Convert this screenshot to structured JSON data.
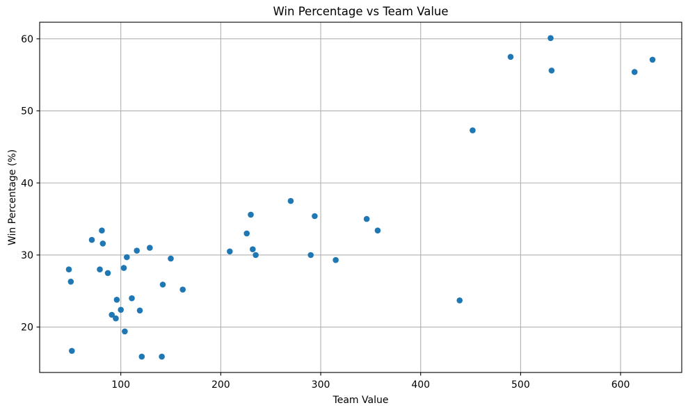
{
  "figure": {
    "background": "#ffffff"
  },
  "chart_data": {
    "type": "scatter",
    "title": "Win Percentage vs Team Value",
    "xlabel": "Team Value",
    "ylabel": "Win Percentage (%)",
    "xlim": [
      18.8,
      661.2
    ],
    "ylim": [
      13.7,
      62.3
    ],
    "xticks": [
      100,
      200,
      300,
      400,
      500,
      600
    ],
    "yticks": [
      20,
      30,
      40,
      50,
      60
    ],
    "grid": true,
    "legend_position": "none",
    "marker": {
      "shape": "circle",
      "color": "#1f77b4",
      "radius_px": 4.3
    },
    "colors": {
      "grid": "#b0b0b0",
      "spine": "#000000",
      "text": "#000000"
    },
    "points": [
      [
        48,
        28.0
      ],
      [
        50,
        26.3
      ],
      [
        51,
        16.7
      ],
      [
        71,
        32.1
      ],
      [
        79,
        28.0
      ],
      [
        81,
        33.4
      ],
      [
        82,
        31.6
      ],
      [
        87,
        27.5
      ],
      [
        91,
        21.7
      ],
      [
        95,
        21.2
      ],
      [
        96,
        23.8
      ],
      [
        100,
        22.4
      ],
      [
        103,
        28.2
      ],
      [
        104,
        19.4
      ],
      [
        106,
        29.7
      ],
      [
        111,
        24.0
      ],
      [
        116,
        30.6
      ],
      [
        119,
        22.3
      ],
      [
        121,
        15.9
      ],
      [
        129,
        31.0
      ],
      [
        141,
        15.9
      ],
      [
        142,
        25.9
      ],
      [
        150,
        29.5
      ],
      [
        162,
        25.2
      ],
      [
        209,
        30.5
      ],
      [
        226,
        33.0
      ],
      [
        230,
        35.6
      ],
      [
        232,
        30.8
      ],
      [
        235,
        30.0
      ],
      [
        270,
        37.5
      ],
      [
        290,
        30.0
      ],
      [
        294,
        35.4
      ],
      [
        315,
        29.3
      ],
      [
        346,
        35.0
      ],
      [
        357,
        33.4
      ],
      [
        439,
        23.7
      ],
      [
        452,
        47.3
      ],
      [
        490,
        57.5
      ],
      [
        530,
        60.1
      ],
      [
        531,
        55.6
      ],
      [
        614,
        55.4
      ],
      [
        632,
        57.1
      ]
    ]
  }
}
